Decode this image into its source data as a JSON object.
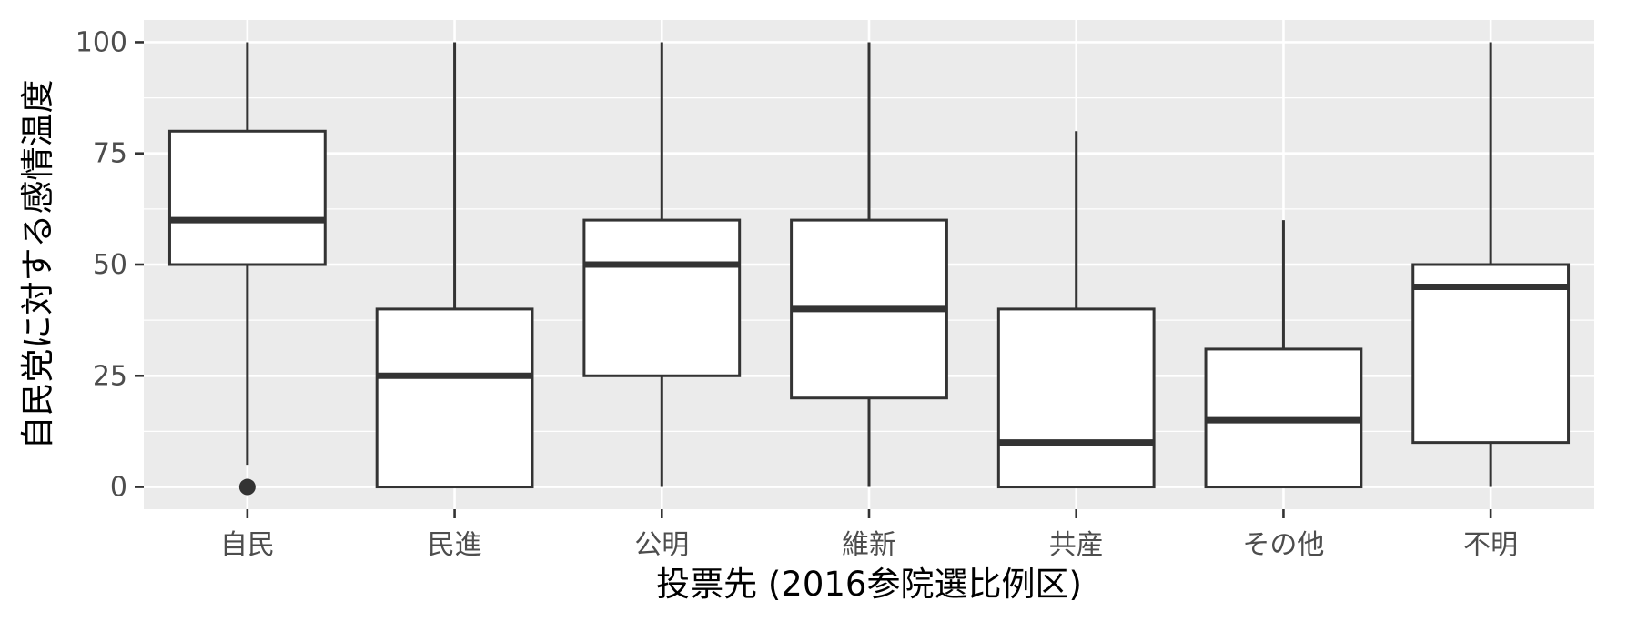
{
  "chart_data": {
    "type": "boxplot",
    "title": "",
    "xlabel": "投票先 (2016参院選比例区)",
    "ylabel": "自民党に対する感情温度",
    "ylim": [
      -5,
      105
    ],
    "y_ticks": [
      0,
      25,
      50,
      75,
      100
    ],
    "y_tick_labels": [
      "0",
      "25",
      "50",
      "75",
      "100"
    ],
    "grid": true,
    "categories": [
      "自民",
      "民進",
      "公明",
      "維新",
      "共産",
      "その他",
      "不明"
    ],
    "boxes": [
      {
        "category": "自民",
        "whisker_low": 5,
        "q1": 50,
        "median": 60,
        "q3": 80,
        "whisker_high": 100,
        "outliers": [
          0
        ]
      },
      {
        "category": "民進",
        "whisker_low": 0,
        "q1": 0,
        "median": 25,
        "q3": 40,
        "whisker_high": 100,
        "outliers": []
      },
      {
        "category": "公明",
        "whisker_low": 0,
        "q1": 25,
        "median": 50,
        "q3": 60,
        "whisker_high": 100,
        "outliers": []
      },
      {
        "category": "維新",
        "whisker_low": 0,
        "q1": 20,
        "median": 40,
        "q3": 60,
        "whisker_high": 100,
        "outliers": []
      },
      {
        "category": "共産",
        "whisker_low": 0,
        "q1": 0,
        "median": 10,
        "q3": 40,
        "whisker_high": 80,
        "outliers": []
      },
      {
        "category": "その他",
        "whisker_low": 0,
        "q1": 0,
        "median": 15,
        "q3": 31,
        "whisker_high": 60,
        "outliers": []
      },
      {
        "category": "不明",
        "whisker_low": 0,
        "q1": 10,
        "median": 45,
        "q3": 50,
        "whisker_high": 100,
        "outliers": []
      }
    ],
    "colors": {
      "panel_background": "#EBEBEB",
      "grid_major": "#FFFFFF",
      "box_fill": "#FFFFFF",
      "box_stroke": "#333333",
      "tick_label": "#4D4D4D",
      "axis_title": "#000000"
    }
  }
}
